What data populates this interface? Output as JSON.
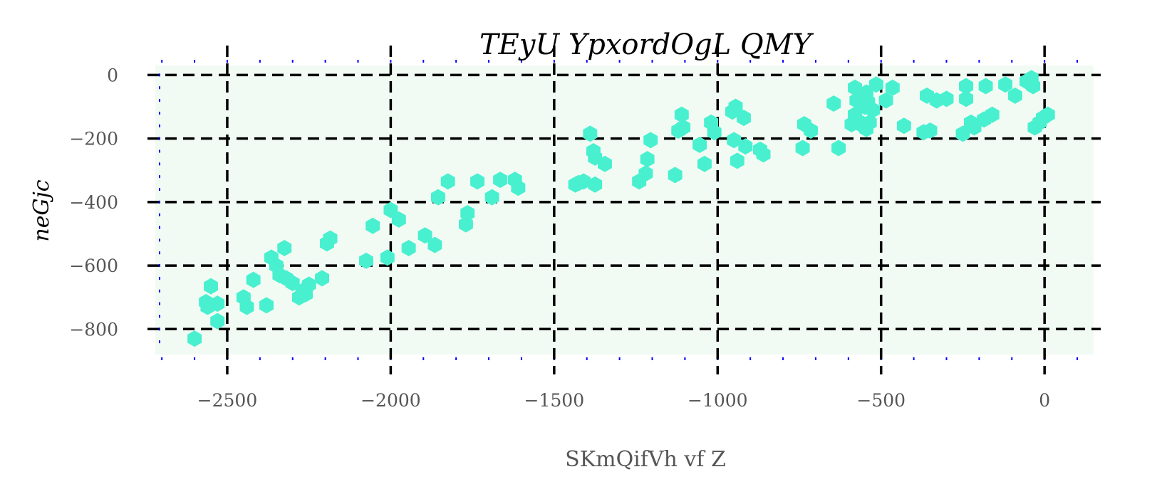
{
  "chart_data": {
    "type": "scatter",
    "title": "TEyU YpxordOgL  QMY",
    "xlabel": "SKmQifVh vf Z",
    "ylabel": "neGjc",
    "xlim": [
      -2720,
      150
    ],
    "ylim": [
      -880,
      30
    ],
    "xticks": [
      -2500,
      -2000,
      -1500,
      -1000,
      -500,
      0
    ],
    "xtick_labels": [
      "−2500",
      "−2000",
      "−1500",
      "−1000",
      "−500",
      "0"
    ],
    "yticks": [
      0,
      -200,
      -400,
      -600,
      -800
    ],
    "ytick_labels": [
      "0",
      "−200",
      "−400",
      "−600",
      "−800"
    ],
    "grid": true,
    "grid_style": "dashed-black",
    "minor_ticks_color": "#0000ff",
    "plot_background": "#f2fbf3",
    "marker": "hexagon",
    "marker_color": "#48f0d0",
    "series": [
      {
        "points": [
          [
            -2600,
            -830
          ],
          [
            -2560,
            -730
          ],
          [
            -2565,
            -715
          ],
          [
            -2550,
            -665
          ],
          [
            -2530,
            -720
          ],
          [
            -2530,
            -775
          ],
          [
            -2450,
            -700
          ],
          [
            -2440,
            -730
          ],
          [
            -2420,
            -645
          ],
          [
            -2380,
            -725
          ],
          [
            -2365,
            -575
          ],
          [
            -2350,
            -600
          ],
          [
            -2340,
            -630
          ],
          [
            -2325,
            -545
          ],
          [
            -2320,
            -640
          ],
          [
            -2300,
            -655
          ],
          [
            -2280,
            -700
          ],
          [
            -2270,
            -680
          ],
          [
            -2260,
            -690
          ],
          [
            -2250,
            -660
          ],
          [
            -2210,
            -640
          ],
          [
            -2195,
            -530
          ],
          [
            -2185,
            -515
          ],
          [
            -2075,
            -585
          ],
          [
            -2055,
            -475
          ],
          [
            -2010,
            -575
          ],
          [
            -2000,
            -425
          ],
          [
            -1975,
            -455
          ],
          [
            -1945,
            -545
          ],
          [
            -1895,
            -505
          ],
          [
            -1865,
            -535
          ],
          [
            -1855,
            -385
          ],
          [
            -1825,
            -335
          ],
          [
            -1770,
            -470
          ],
          [
            -1765,
            -435
          ],
          [
            -1735,
            -335
          ],
          [
            -1690,
            -385
          ],
          [
            -1665,
            -330
          ],
          [
            -1620,
            -330
          ],
          [
            -1610,
            -355
          ],
          [
            -1435,
            -345
          ],
          [
            -1425,
            -340
          ],
          [
            -1410,
            -335
          ],
          [
            -1375,
            -345
          ],
          [
            -1390,
            -185
          ],
          [
            -1380,
            -240
          ],
          [
            -1375,
            -260
          ],
          [
            -1345,
            -280
          ],
          [
            -1240,
            -335
          ],
          [
            -1220,
            -310
          ],
          [
            -1215,
            -265
          ],
          [
            -1205,
            -205
          ],
          [
            -1130,
            -315
          ],
          [
            -1120,
            -175
          ],
          [
            -1110,
            -125
          ],
          [
            -1105,
            -165
          ],
          [
            -1055,
            -220
          ],
          [
            -1040,
            -280
          ],
          [
            -1020,
            -150
          ],
          [
            -1010,
            -180
          ],
          [
            -955,
            -115
          ],
          [
            -945,
            -100
          ],
          [
            -950,
            -205
          ],
          [
            -940,
            -270
          ],
          [
            -920,
            -135
          ],
          [
            -915,
            -225
          ],
          [
            -870,
            -235
          ],
          [
            -860,
            -250
          ],
          [
            -740,
            -230
          ],
          [
            -735,
            -155
          ],
          [
            -715,
            -175
          ],
          [
            -645,
            -90
          ],
          [
            -630,
            -230
          ],
          [
            -590,
            -155
          ],
          [
            -580,
            -125
          ],
          [
            -580,
            -40
          ],
          [
            -575,
            -80
          ],
          [
            -570,
            -145
          ],
          [
            -560,
            -70
          ],
          [
            -555,
            -160
          ],
          [
            -550,
            -100
          ],
          [
            -545,
            -170
          ],
          [
            -545,
            -55
          ],
          [
            -540,
            -85
          ],
          [
            -535,
            -150
          ],
          [
            -525,
            -110
          ],
          [
            -515,
            -30
          ],
          [
            -485,
            -80
          ],
          [
            -465,
            -40
          ],
          [
            -430,
            -160
          ],
          [
            -370,
            -180
          ],
          [
            -360,
            -65
          ],
          [
            -350,
            -175
          ],
          [
            -330,
            -80
          ],
          [
            -300,
            -75
          ],
          [
            -250,
            -185
          ],
          [
            -240,
            -35
          ],
          [
            -240,
            -75
          ],
          [
            -225,
            -150
          ],
          [
            -215,
            -165
          ],
          [
            -185,
            -140
          ],
          [
            -180,
            -35
          ],
          [
            -160,
            -125
          ],
          [
            -120,
            -30
          ],
          [
            -90,
            -65
          ],
          [
            -55,
            -20
          ],
          [
            -40,
            -10
          ],
          [
            -35,
            -35
          ],
          [
            -30,
            -165
          ],
          [
            -15,
            -150
          ],
          [
            -5,
            -135
          ],
          [
            10,
            -125
          ]
        ]
      }
    ]
  }
}
